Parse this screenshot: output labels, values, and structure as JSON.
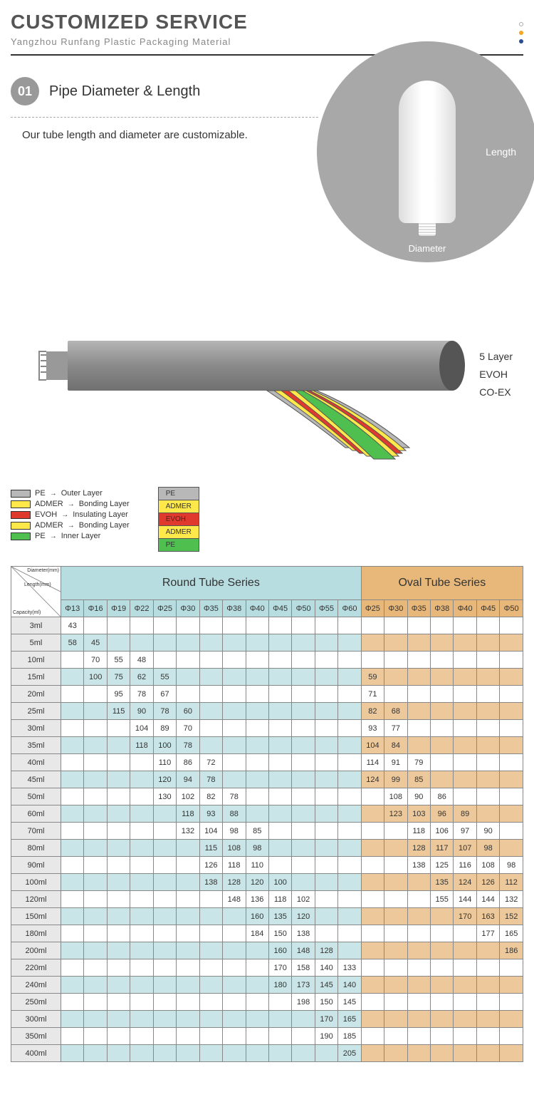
{
  "header": {
    "title": "CUSTOMIZED SERVICE",
    "subtitle": "Yangzhou Runfang Plastic Packaging Material",
    "dot_colors": [
      "#ffffff",
      "#f5a623",
      "#2a4b8d"
    ]
  },
  "section1": {
    "number": "01",
    "title": "Pipe Diameter & Length",
    "desc": "Our tube length and diameter are customizable.",
    "length_label": "Length",
    "diameter_label": "Diameter",
    "circle_color": "#a8a8a8"
  },
  "diagram": {
    "side_labels": [
      "5 Layer",
      "EVOH",
      "CO-EX"
    ],
    "legend": [
      {
        "color": "#b8b8b8",
        "name": "PE",
        "role": "Outer Layer"
      },
      {
        "color": "#ffe94a",
        "name": "ADMER",
        "role": "Bonding Layer"
      },
      {
        "color": "#e03a2f",
        "name": "EVOH",
        "role": "Insulating Layer"
      },
      {
        "color": "#ffe94a",
        "name": "ADMER",
        "role": "Bonding Layer"
      },
      {
        "color": "#4fbf4f",
        "name": "PE",
        "role": "Inner Layer"
      }
    ],
    "stack": [
      {
        "color": "#b8b8b8",
        "label": "PE"
      },
      {
        "color": "#ffe94a",
        "label": "ADMER"
      },
      {
        "color": "#e03a2f",
        "label": "EVOH",
        "text_color": "#5a1f1f"
      },
      {
        "color": "#ffe94a",
        "label": "ADMER"
      },
      {
        "color": "#4fbf4f",
        "label": "PE"
      }
    ],
    "tube_color": "#909090"
  },
  "table": {
    "corner_labels": [
      "Diameter(mm)",
      "Length(mm)",
      "Capacity(ml)"
    ],
    "round_header": "Round Tube Series",
    "oval_header": "Oval Tube Series",
    "round_cols": [
      "Φ13",
      "Φ16",
      "Φ19",
      "Φ22",
      "Φ25",
      "Φ30",
      "Φ35",
      "Φ38",
      "Φ40",
      "Φ45",
      "Φ50",
      "Φ55",
      "Φ60"
    ],
    "oval_cols": [
      "Φ25",
      "Φ30",
      "Φ35",
      "Φ38",
      "Φ40",
      "Φ45",
      "Φ50"
    ],
    "colors": {
      "round_hdr": "#b8dde0",
      "oval_hdr": "#e8b87a",
      "round_row_odd": "#cae5e7",
      "oval_row_odd": "#edc89b",
      "cap_bg": "#e8e8e8"
    },
    "rows": [
      {
        "cap": "3ml",
        "r": [
          "43",
          "",
          "",
          "",
          "",
          "",
          "",
          "",
          "",
          "",
          "",
          "",
          ""
        ],
        "o": [
          "",
          "",
          "",
          "",
          "",
          "",
          ""
        ]
      },
      {
        "cap": "5ml",
        "r": [
          "58",
          "45",
          "",
          "",
          "",
          "",
          "",
          "",
          "",
          "",
          "",
          "",
          ""
        ],
        "o": [
          "",
          "",
          "",
          "",
          "",
          "",
          ""
        ]
      },
      {
        "cap": "10ml",
        "r": [
          "",
          "70",
          "55",
          "48",
          "",
          "",
          "",
          "",
          "",
          "",
          "",
          "",
          ""
        ],
        "o": [
          "",
          "",
          "",
          "",
          "",
          "",
          ""
        ]
      },
      {
        "cap": "15ml",
        "r": [
          "",
          "100",
          "75",
          "62",
          "55",
          "",
          "",
          "",
          "",
          "",
          "",
          "",
          ""
        ],
        "o": [
          "59",
          "",
          "",
          "",
          "",
          "",
          ""
        ]
      },
      {
        "cap": "20ml",
        "r": [
          "",
          "",
          "95",
          "78",
          "67",
          "",
          "",
          "",
          "",
          "",
          "",
          "",
          ""
        ],
        "o": [
          "71",
          "",
          "",
          "",
          "",
          "",
          ""
        ]
      },
      {
        "cap": "25ml",
        "r": [
          "",
          "",
          "115",
          "90",
          "78",
          "60",
          "",
          "",
          "",
          "",
          "",
          "",
          ""
        ],
        "o": [
          "82",
          "68",
          "",
          "",
          "",
          "",
          ""
        ]
      },
      {
        "cap": "30ml",
        "r": [
          "",
          "",
          "",
          "104",
          "89",
          "70",
          "",
          "",
          "",
          "",
          "",
          "",
          ""
        ],
        "o": [
          "93",
          "77",
          "",
          "",
          "",
          "",
          ""
        ]
      },
      {
        "cap": "35ml",
        "r": [
          "",
          "",
          "",
          "118",
          "100",
          "78",
          "",
          "",
          "",
          "",
          "",
          "",
          ""
        ],
        "o": [
          "104",
          "84",
          "",
          "",
          "",
          "",
          ""
        ]
      },
      {
        "cap": "40ml",
        "r": [
          "",
          "",
          "",
          "",
          "110",
          "86",
          "72",
          "",
          "",
          "",
          "",
          "",
          ""
        ],
        "o": [
          "114",
          "91",
          "79",
          "",
          "",
          "",
          ""
        ]
      },
      {
        "cap": "45ml",
        "r": [
          "",
          "",
          "",
          "",
          "120",
          "94",
          "78",
          "",
          "",
          "",
          "",
          "",
          ""
        ],
        "o": [
          "124",
          "99",
          "85",
          "",
          "",
          "",
          ""
        ]
      },
      {
        "cap": "50ml",
        "r": [
          "",
          "",
          "",
          "",
          "130",
          "102",
          "82",
          "78",
          "",
          "",
          "",
          "",
          ""
        ],
        "o": [
          "",
          "108",
          "90",
          "86",
          "",
          "",
          ""
        ]
      },
      {
        "cap": "60ml",
        "r": [
          "",
          "",
          "",
          "",
          "",
          "118",
          "93",
          "88",
          "",
          "",
          "",
          "",
          ""
        ],
        "o": [
          "",
          "123",
          "103",
          "96",
          "89",
          "",
          ""
        ]
      },
      {
        "cap": "70ml",
        "r": [
          "",
          "",
          "",
          "",
          "",
          "132",
          "104",
          "98",
          "85",
          "",
          "",
          "",
          ""
        ],
        "o": [
          "",
          "",
          "118",
          "106",
          "97",
          "90",
          ""
        ]
      },
      {
        "cap": "80ml",
        "r": [
          "",
          "",
          "",
          "",
          "",
          "",
          "115",
          "108",
          "98",
          "",
          "",
          "",
          ""
        ],
        "o": [
          "",
          "",
          "128",
          "117",
          "107",
          "98",
          ""
        ]
      },
      {
        "cap": "90ml",
        "r": [
          "",
          "",
          "",
          "",
          "",
          "",
          "126",
          "118",
          "110",
          "",
          "",
          "",
          ""
        ],
        "o": [
          "",
          "",
          "138",
          "125",
          "116",
          "108",
          "98"
        ]
      },
      {
        "cap": "100ml",
        "r": [
          "",
          "",
          "",
          "",
          "",
          "",
          "138",
          "128",
          "120",
          "100",
          "",
          "",
          ""
        ],
        "o": [
          "",
          "",
          "",
          "135",
          "124",
          "126",
          "112"
        ]
      },
      {
        "cap": "120ml",
        "r": [
          "",
          "",
          "",
          "",
          "",
          "",
          "",
          "148",
          "136",
          "118",
          "102",
          "",
          ""
        ],
        "o": [
          "",
          "",
          "",
          "155",
          "144",
          "144",
          "132"
        ]
      },
      {
        "cap": "150ml",
        "r": [
          "",
          "",
          "",
          "",
          "",
          "",
          "",
          "",
          "160",
          "135",
          "120",
          "",
          ""
        ],
        "o": [
          "",
          "",
          "",
          "",
          "170",
          "163",
          "152"
        ]
      },
      {
        "cap": "180ml",
        "r": [
          "",
          "",
          "",
          "",
          "",
          "",
          "",
          "",
          "184",
          "150",
          "138",
          "",
          ""
        ],
        "o": [
          "",
          "",
          "",
          "",
          "",
          "177",
          "165"
        ]
      },
      {
        "cap": "200ml",
        "r": [
          "",
          "",
          "",
          "",
          "",
          "",
          "",
          "",
          "",
          "160",
          "148",
          "128",
          ""
        ],
        "o": [
          "",
          "",
          "",
          "",
          "",
          "",
          "186"
        ]
      },
      {
        "cap": "220ml",
        "r": [
          "",
          "",
          "",
          "",
          "",
          "",
          "",
          "",
          "",
          "170",
          "158",
          "140",
          "133"
        ],
        "o": [
          "",
          "",
          "",
          "",
          "",
          "",
          ""
        ]
      },
      {
        "cap": "240ml",
        "r": [
          "",
          "",
          "",
          "",
          "",
          "",
          "",
          "",
          "",
          "180",
          "173",
          "145",
          "140"
        ],
        "o": [
          "",
          "",
          "",
          "",
          "",
          "",
          ""
        ]
      },
      {
        "cap": "250ml",
        "r": [
          "",
          "",
          "",
          "",
          "",
          "",
          "",
          "",
          "",
          "",
          "198",
          "150",
          "145"
        ],
        "o": [
          "",
          "",
          "",
          "",
          "",
          "",
          ""
        ]
      },
      {
        "cap": "300ml",
        "r": [
          "",
          "",
          "",
          "",
          "",
          "",
          "",
          "",
          "",
          "",
          "",
          "170",
          "165"
        ],
        "o": [
          "",
          "",
          "",
          "",
          "",
          "",
          ""
        ]
      },
      {
        "cap": "350ml",
        "r": [
          "",
          "",
          "",
          "",
          "",
          "",
          "",
          "",
          "",
          "",
          "",
          "190",
          "185"
        ],
        "o": [
          "",
          "",
          "",
          "",
          "",
          "",
          ""
        ]
      },
      {
        "cap": "400ml",
        "r": [
          "",
          "",
          "",
          "",
          "",
          "",
          "",
          "",
          "",
          "",
          "",
          "",
          "205"
        ],
        "o": [
          "",
          "",
          "",
          "",
          "",
          "",
          ""
        ]
      }
    ]
  }
}
